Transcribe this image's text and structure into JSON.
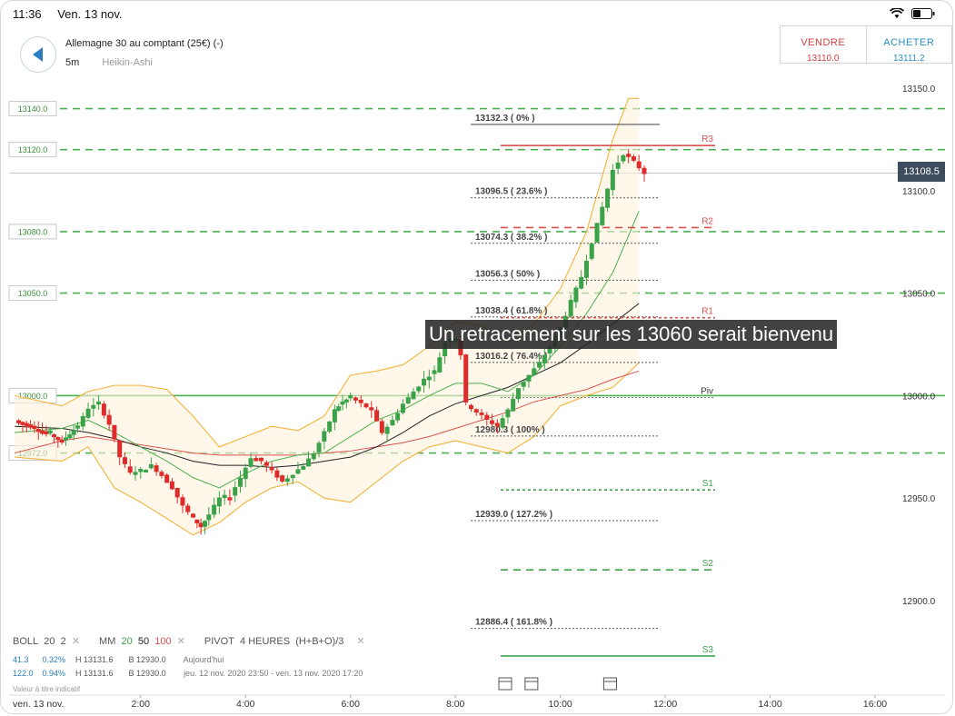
{
  "status_bar": {
    "time": "11:36",
    "date": "Ven. 13 nov."
  },
  "instrument": {
    "name": "Allemagne 30 au comptant (25€) (-)",
    "timeframe": "5m",
    "chart_type": "Heikin-Ashi"
  },
  "trade": {
    "sell_label": "VENDRE",
    "sell_price": "13110.0",
    "buy_label": "ACHETER",
    "buy_price": "13111.2"
  },
  "overlay_text": "Un retracement sur les 13060 serait bienvenu",
  "current_price": "13108.5",
  "legend": {
    "boll": {
      "name": "BOLL",
      "p1": "20",
      "p2": "2"
    },
    "mm": {
      "name": "MM",
      "p1": "20",
      "p2": "50",
      "p3": "100"
    },
    "pivot": {
      "name": "PIVOT",
      "p1": "4 HEURES",
      "p2": "(H+B+O)/3"
    }
  },
  "stats": [
    {
      "v": "41.3",
      "pct": "0.32%",
      "h": "H 13131.6",
      "b": "B 12930.0",
      "period": "Aujourd'hui"
    },
    {
      "v": "122.0",
      "pct": "0.94%",
      "h": "H 13131.6",
      "b": "B 12930.0",
      "period": "jeu. 12 nov. 2020 23:50 - ven. 13 nov. 2020 17:20"
    }
  ],
  "note": "Valeur à titre indicatif",
  "colors": {
    "up": "#3aa34a",
    "down": "#e02b2b",
    "green_dash": "#4caf50",
    "red_line": "#d9534f",
    "band": "#f2b43c",
    "mm20": "#4caf50",
    "mm50": "#222222",
    "mm100": "#d9534f"
  },
  "chart_data": {
    "type": "candlestick",
    "xlabel": "",
    "ylabel": "",
    "x_ticks": [
      {
        "label": "ven. 13 nov.",
        "hour": 0
      },
      {
        "label": "2:00",
        "hour": 2
      },
      {
        "label": "4:00",
        "hour": 4
      },
      {
        "label": "6:00",
        "hour": 6
      },
      {
        "label": "8:00",
        "hour": 8
      },
      {
        "label": "10:00",
        "hour": 10
      },
      {
        "label": "12:00",
        "hour": 12
      },
      {
        "label": "14:00",
        "hour": 14
      },
      {
        "label": "16:00",
        "hour": 16
      }
    ],
    "y_ticks": [
      "13150.0",
      "13100.0",
      "13050.0",
      "13000.0",
      "12950.0",
      "12900.0"
    ],
    "ylim": [
      12850,
      13160
    ],
    "xlim": [
      -0.4,
      17.5
    ],
    "horizontal_levels": [
      {
        "label": "13140.0",
        "value": 13140
      },
      {
        "label": "13120.0",
        "value": 13120
      },
      {
        "label": "13080.0",
        "value": 13080
      },
      {
        "label": "13050.0",
        "value": 13050
      },
      {
        "label": "13000.0",
        "value": 13000
      },
      {
        "label": "12972.0",
        "value": 12972
      }
    ],
    "fibonacci": [
      {
        "label": "13132.3 ( 0% )",
        "value": 13132.3
      },
      {
        "label": "13096.5 ( 23.6% )",
        "value": 13096.5
      },
      {
        "label": "13074.3 ( 38.2% )",
        "value": 13074.3
      },
      {
        "label": "13056.3 ( 50% )",
        "value": 13056.3
      },
      {
        "label": "13038.4 ( 61.8% )",
        "value": 13038.4
      },
      {
        "label": "13016.2 ( 76.4% )",
        "value": 13016.2
      },
      {
        "label": "12980.3 ( 100% )",
        "value": 12980.3
      },
      {
        "label": "12939.0 ( 127.2% )",
        "value": 12939.0
      },
      {
        "label": "12886.4 ( 161.8% )",
        "value": 12886.4
      }
    ],
    "pivots": [
      {
        "label": "R3",
        "value": 13122
      },
      {
        "label": "R2",
        "value": 13082
      },
      {
        "label": "R1",
        "value": 13038
      },
      {
        "label": "Piv",
        "value": 12999
      },
      {
        "label": "S1",
        "value": 12954
      },
      {
        "label": "S2",
        "value": 12915
      },
      {
        "label": "S3",
        "value": 12873
      }
    ],
    "event_icon_hours": [
      8.95,
      9.45,
      10.95
    ],
    "series_close": [
      [
        -0.4,
        12988
      ],
      [
        -0.1,
        12985
      ],
      [
        0.2,
        12982
      ],
      [
        0.5,
        12978
      ],
      [
        0.8,
        12985
      ],
      [
        1.0,
        12994
      ],
      [
        1.2,
        12996
      ],
      [
        1.4,
        12986
      ],
      [
        1.6,
        12970
      ],
      [
        1.8,
        12962
      ],
      [
        2.0,
        12963
      ],
      [
        2.2,
        12966
      ],
      [
        2.4,
        12961
      ],
      [
        2.6,
        12955
      ],
      [
        2.8,
        12946
      ],
      [
        3.0,
        12940
      ],
      [
        3.15,
        12936
      ],
      [
        3.3,
        12942
      ],
      [
        3.5,
        12950
      ],
      [
        3.7,
        12951
      ],
      [
        3.9,
        12960
      ],
      [
        4.1,
        12970
      ],
      [
        4.3,
        12968
      ],
      [
        4.5,
        12963
      ],
      [
        4.7,
        12958
      ],
      [
        4.9,
        12962
      ],
      [
        5.1,
        12966
      ],
      [
        5.3,
        12972
      ],
      [
        5.5,
        12982
      ],
      [
        5.7,
        12993
      ],
      [
        5.85,
        12997
      ],
      [
        6.0,
        12999
      ],
      [
        6.2,
        12996
      ],
      [
        6.4,
        12993
      ],
      [
        6.5,
        12987
      ],
      [
        6.6,
        12982
      ],
      [
        6.8,
        12988
      ],
      [
        7.0,
        12996
      ],
      [
        7.2,
        13002
      ],
      [
        7.4,
        13008
      ],
      [
        7.6,
        13012
      ],
      [
        7.8,
        13026
      ],
      [
        8.0,
        13028
      ],
      [
        8.1,
        13020
      ],
      [
        8.2,
        12996
      ],
      [
        8.4,
        12992
      ],
      [
        8.6,
        12988
      ],
      [
        8.8,
        12985
      ],
      [
        9.0,
        12993
      ],
      [
        9.2,
        13004
      ],
      [
        9.4,
        13010
      ],
      [
        9.6,
        13016
      ],
      [
        9.8,
        13024
      ],
      [
        10.0,
        13033
      ],
      [
        10.2,
        13046
      ],
      [
        10.4,
        13058
      ],
      [
        10.6,
        13075
      ],
      [
        10.8,
        13092
      ],
      [
        11.0,
        13110
      ],
      [
        11.2,
        13118
      ],
      [
        11.4,
        13114
      ],
      [
        11.6,
        13108.5
      ]
    ],
    "bollinger_upper": [
      [
        -0.4,
        13000
      ],
      [
        0.5,
        12995
      ],
      [
        1.0,
        13002
      ],
      [
        1.5,
        13005
      ],
      [
        2.0,
        13005
      ],
      [
        2.5,
        13003
      ],
      [
        3.0,
        12990
      ],
      [
        3.5,
        12975
      ],
      [
        4.0,
        12980
      ],
      [
        4.5,
        12985
      ],
      [
        5.0,
        12983
      ],
      [
        5.5,
        12990
      ],
      [
        6.0,
        13010
      ],
      [
        6.5,
        13012
      ],
      [
        7.0,
        13015
      ],
      [
        7.5,
        13024
      ],
      [
        8.0,
        13036
      ],
      [
        8.5,
        13034
      ],
      [
        9.0,
        13026
      ],
      [
        9.5,
        13035
      ],
      [
        10.0,
        13052
      ],
      [
        10.5,
        13080
      ],
      [
        11.0,
        13125
      ],
      [
        11.3,
        13145
      ],
      [
        11.5,
        13145
      ]
    ],
    "bollinger_lower": [
      [
        -0.4,
        12970
      ],
      [
        0.5,
        12968
      ],
      [
        1.0,
        12975
      ],
      [
        1.5,
        12955
      ],
      [
        2.0,
        12948
      ],
      [
        2.5,
        12940
      ],
      [
        3.0,
        12932
      ],
      [
        3.5,
        12938
      ],
      [
        4.0,
        12948
      ],
      [
        4.5,
        12955
      ],
      [
        5.0,
        12958
      ],
      [
        5.5,
        12950
      ],
      [
        6.0,
        12948
      ],
      [
        6.5,
        12958
      ],
      [
        7.0,
        12968
      ],
      [
        7.5,
        12975
      ],
      [
        8.0,
        12978
      ],
      [
        8.5,
        12975
      ],
      [
        9.0,
        12972
      ],
      [
        9.5,
        12980
      ],
      [
        10.0,
        12995
      ],
      [
        10.5,
        13000
      ],
      [
        11.0,
        13004
      ],
      [
        11.5,
        13016
      ]
    ],
    "ma20": [
      [
        -0.4,
        12982
      ],
      [
        0.5,
        12984
      ],
      [
        1.0,
        12988
      ],
      [
        1.5,
        12982
      ],
      [
        2.0,
        12975
      ],
      [
        2.5,
        12968
      ],
      [
        3.0,
        12960
      ],
      [
        3.5,
        12955
      ],
      [
        4.0,
        12962
      ],
      [
        4.5,
        12968
      ],
      [
        5.0,
        12971
      ],
      [
        5.5,
        12972
      ],
      [
        6.0,
        12980
      ],
      [
        6.5,
        12988
      ],
      [
        7.0,
        12993
      ],
      [
        7.5,
        13000
      ],
      [
        8.0,
        13006
      ],
      [
        8.5,
        13006
      ],
      [
        9.0,
        13002
      ],
      [
        9.5,
        13010
      ],
      [
        10.0,
        13024
      ],
      [
        10.5,
        13040
      ],
      [
        11.0,
        13060
      ],
      [
        11.5,
        13090
      ]
    ],
    "ma50": [
      [
        -0.4,
        12985
      ],
      [
        0.5,
        12984
      ],
      [
        1.0,
        12982
      ],
      [
        1.5,
        12979
      ],
      [
        2.0,
        12975
      ],
      [
        2.5,
        12972
      ],
      [
        3.0,
        12968
      ],
      [
        3.5,
        12966
      ],
      [
        4.0,
        12966
      ],
      [
        4.5,
        12965
      ],
      [
        5.0,
        12966
      ],
      [
        5.5,
        12968
      ],
      [
        6.0,
        12970
      ],
      [
        6.5,
        12975
      ],
      [
        7.0,
        12982
      ],
      [
        7.5,
        12990
      ],
      [
        8.0,
        12996
      ],
      [
        8.5,
        13000
      ],
      [
        9.0,
        13004
      ],
      [
        9.5,
        13010
      ],
      [
        10.0,
        13016
      ],
      [
        10.5,
        13025
      ],
      [
        11.0,
        13035
      ],
      [
        11.5,
        13045
      ]
    ],
    "ma100": [
      [
        -0.4,
        12972
      ],
      [
        0.5,
        12978
      ],
      [
        1.0,
        12980
      ],
      [
        1.5,
        12978
      ],
      [
        2.0,
        12976
      ],
      [
        2.5,
        12974
      ],
      [
        3.0,
        12972
      ],
      [
        3.5,
        12971
      ],
      [
        4.0,
        12971
      ],
      [
        4.5,
        12971
      ],
      [
        5.0,
        12971
      ],
      [
        5.5,
        12972
      ],
      [
        6.0,
        12973
      ],
      [
        6.5,
        12975
      ],
      [
        7.0,
        12977
      ],
      [
        7.5,
        12980
      ],
      [
        8.0,
        12984
      ],
      [
        8.5,
        12988
      ],
      [
        9.0,
        12992
      ],
      [
        9.5,
        12997
      ],
      [
        10.0,
        13000
      ],
      [
        10.5,
        13003
      ],
      [
        11.0,
        13008
      ],
      [
        11.5,
        13012
      ]
    ]
  }
}
